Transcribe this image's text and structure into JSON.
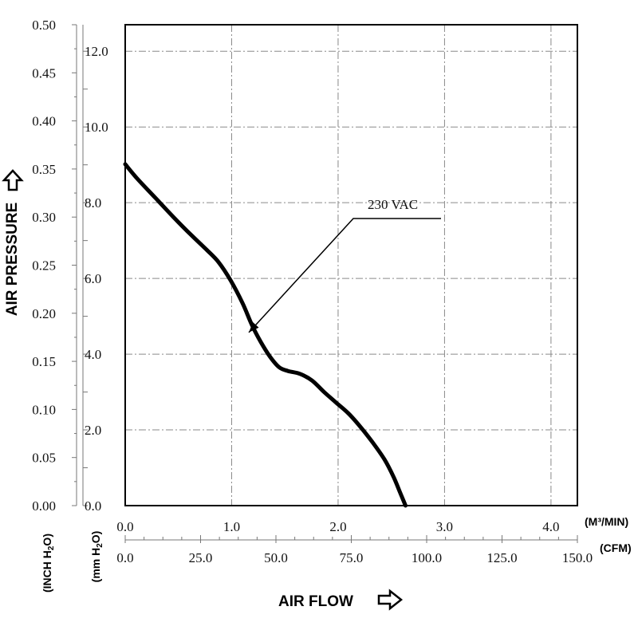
{
  "chart_data": {
    "type": "line",
    "title": "",
    "series": [
      {
        "name": "230 VAC",
        "x": [
          0.0,
          4.0,
          10.0,
          16.0,
          22.0,
          27.0,
          31.0,
          35.0,
          39.0,
          42.0,
          45.0,
          48.0,
          51.0,
          54.0,
          58.0,
          62.0,
          66.0,
          70.0,
          74.0,
          78.0,
          82.0,
          86.0,
          89.0,
          91.0,
          93.0
        ],
        "y": [
          0.355,
          0.34,
          0.32,
          0.3,
          0.281,
          0.266,
          0.253,
          0.234,
          0.21,
          0.188,
          0.17,
          0.155,
          0.144,
          0.14,
          0.137,
          0.13,
          0.118,
          0.107,
          0.096,
          0.082,
          0.066,
          0.048,
          0.03,
          0.015,
          0.0
        ]
      }
    ],
    "axes": {
      "y_left_outer": {
        "label": "AIR PRESSURE",
        "unit": "(INCH H2O)",
        "ticks": [
          "0.00",
          "0.05",
          "0.10",
          "0.15",
          "0.20",
          "0.25",
          "0.30",
          "0.35",
          "0.40",
          "0.45",
          "0.50"
        ],
        "range": [
          0,
          0.5
        ]
      },
      "y_left_inner": {
        "unit": "(mm H2O)",
        "ticks": [
          "0.0",
          "2.0",
          "4.0",
          "6.0",
          "8.0",
          "10.0",
          "12.0"
        ],
        "range": [
          0,
          12.7
        ]
      },
      "x_top": {
        "unit": "(M³/MIN)",
        "ticks": [
          "0.0",
          "1.0",
          "2.0",
          "3.0",
          "4.0"
        ],
        "range": [
          0,
          4.248
        ]
      },
      "x_bottom": {
        "label": "AIR FLOW",
        "unit": "(CFM)",
        "ticks": [
          "0.0",
          "25.0",
          "50.0",
          "75.0",
          "100.0",
          "125.0",
          "150.0"
        ],
        "range": [
          0,
          150
        ]
      }
    },
    "annotations": [
      {
        "text": "230 VAC",
        "target": {
          "x": 41.0,
          "y": 0.18
        }
      }
    ],
    "grid": true
  }
}
